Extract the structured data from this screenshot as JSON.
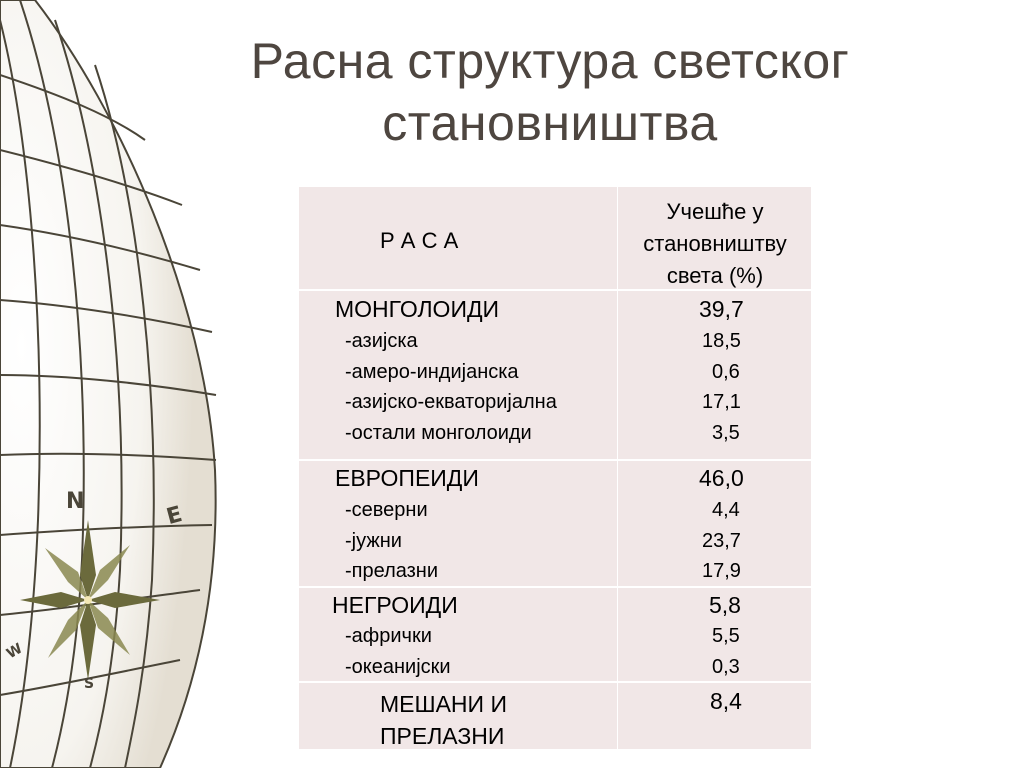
{
  "title": {
    "line1": "Расна структура светског",
    "line2": "становништва"
  },
  "table": {
    "header": {
      "col1": "Р А С А",
      "col2_lines": [
        "Учешће у",
        "становништву",
        "света (%)"
      ]
    },
    "groups": [
      {
        "name": "МОНГОЛОИДИ",
        "value": "39,7",
        "items": [
          {
            "label": "-азијска",
            "value": "18,5"
          },
          {
            "label": "-амеро-индијанска",
            "value": "0,6"
          },
          {
            "label": "-азијско-екваторијална",
            "value": "17,1"
          },
          {
            "label": "-остали монголоиди",
            "value": "3,5"
          }
        ]
      },
      {
        "name": "ЕВРОПЕИДИ",
        "value": "46,0",
        "items": [
          {
            "label": "-северни",
            "value": "4,4"
          },
          {
            "label": "-јужни",
            "value": "23,7"
          },
          {
            "label": "-прелазни",
            "value": "17,9"
          }
        ]
      },
      {
        "name": "НЕГРОИДИ",
        "value": "5,8",
        "items": [
          {
            "label": "-афрички",
            "value": "5,5"
          },
          {
            "label": "-океанијски",
            "value": "0,3"
          }
        ]
      },
      {
        "name_lines": [
          "МЕШАНИ И",
          "ПРЕЛАЗНИ"
        ],
        "value": "8,4"
      }
    ]
  },
  "compass": {
    "n": "N",
    "e": "E",
    "s": "S",
    "w": "W"
  },
  "colors": {
    "table_bg": "#f1e7e7",
    "title": "#4e4640",
    "globe_lines": "#4a4538"
  }
}
